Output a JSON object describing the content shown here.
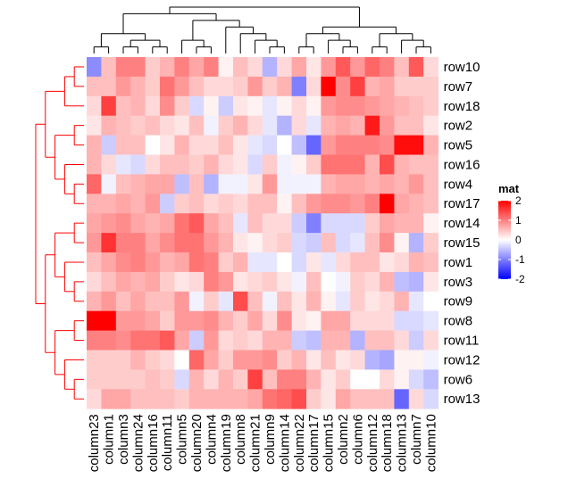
{
  "chart_data": {
    "type": "heatmap",
    "row_labels": [
      "row10",
      "row7",
      "row18",
      "row2",
      "row5",
      "row16",
      "row4",
      "row17",
      "row14",
      "row15",
      "row1",
      "row3",
      "row9",
      "row8",
      "row11",
      "row12",
      "row6",
      "row13"
    ],
    "col_labels": [
      "column23",
      "column1",
      "column3",
      "column24",
      "column16",
      "column11",
      "column5",
      "column20",
      "column4",
      "column19",
      "column8",
      "column21",
      "column9",
      "column14",
      "column22",
      "column17",
      "column15",
      "column2",
      "column6",
      "column12",
      "column18",
      "column13",
      "column7",
      "column10"
    ],
    "values": [
      [
        -0.9,
        0.5,
        1.0,
        1.0,
        0.4,
        0.6,
        1.0,
        0.7,
        1.0,
        0.1,
        0.5,
        0.3,
        -0.6,
        0.3,
        0.7,
        0.2,
        0.8,
        1.3,
        0.8,
        1.2,
        1.0,
        0.5,
        1.3,
        0.3
      ],
      [
        0.5,
        0.5,
        0.8,
        0.6,
        0.4,
        1.1,
        0.8,
        0.5,
        0.3,
        0.3,
        0.4,
        0.8,
        0.4,
        0.6,
        -1.0,
        0.3,
        2.0,
        0.9,
        1.5,
        0.6,
        0.7,
        0.4,
        0.4,
        0.4
      ],
      [
        0.3,
        1.5,
        0.5,
        0.6,
        0.3,
        0.9,
        0.4,
        -0.3,
        0.1,
        -0.4,
        0.2,
        0.1,
        -0.2,
        0.1,
        0.3,
        0.1,
        0.8,
        0.9,
        0.9,
        0.8,
        0.7,
        0.6,
        0.5,
        0.4
      ],
      [
        0.2,
        0.6,
        0.5,
        0.4,
        0.5,
        0.3,
        0.2,
        0.5,
        -0.1,
        0.4,
        0.6,
        0.3,
        -0.2,
        -0.6,
        0.3,
        -0.2,
        0.6,
        0.7,
        0.6,
        1.8,
        0.8,
        0.5,
        0.5,
        0.2
      ],
      [
        0.6,
        -0.4,
        0.5,
        0.5,
        0.0,
        0.2,
        0.6,
        0.3,
        0.3,
        0.5,
        0.2,
        -0.2,
        -0.3,
        0.0,
        -0.5,
        -1.2,
        0.8,
        1.0,
        1.0,
        1.0,
        0.9,
        1.9,
        1.9,
        0.6
      ],
      [
        0.6,
        0.3,
        -0.2,
        -0.3,
        0.3,
        0.5,
        0.5,
        0.4,
        0.6,
        0.3,
        0.2,
        -0.3,
        0.4,
        -0.1,
        0.1,
        0.4,
        1.1,
        1.1,
        1.1,
        0.6,
        1.4,
        0.6,
        0.5,
        0.5
      ],
      [
        1.2,
        -0.1,
        0.5,
        0.6,
        0.7,
        0.7,
        -0.5,
        0.5,
        -0.6,
        -0.1,
        -0.1,
        0.2,
        0.8,
        -0.1,
        -0.1,
        -0.1,
        0.6,
        0.7,
        0.7,
        0.6,
        0.7,
        0.6,
        0.8,
        0.5
      ],
      [
        0.6,
        0.6,
        0.7,
        0.6,
        0.8,
        -0.4,
        0.4,
        0.5,
        0.3,
        0.4,
        0.3,
        0.5,
        0.5,
        0.1,
        0.5,
        0.8,
        0.9,
        0.9,
        0.8,
        1.0,
        2.0,
        0.7,
        0.6,
        0.5
      ],
      [
        0.7,
        0.8,
        0.9,
        0.7,
        0.6,
        0.7,
        1.1,
        1.3,
        0.7,
        0.5,
        -0.2,
        0.5,
        0.3,
        0.3,
        -0.4,
        -1.0,
        -0.3,
        -0.3,
        -0.3,
        0.4,
        0.7,
        0.6,
        0.6,
        0.1
      ],
      [
        0.8,
        1.6,
        1.0,
        1.0,
        0.7,
        0.9,
        1.1,
        1.1,
        0.8,
        0.6,
        0.2,
        0.1,
        0.3,
        0.4,
        -0.3,
        -0.4,
        0.5,
        -0.3,
        -0.2,
        0.5,
        0.9,
        0.1,
        -0.6,
        0.4
      ],
      [
        0.5,
        0.7,
        0.9,
        1.0,
        0.8,
        0.6,
        0.7,
        1.1,
        1.0,
        0.4,
        0.6,
        -0.2,
        -0.2,
        0.0,
        -0.3,
        0.2,
        -0.2,
        0.3,
        0.5,
        0.5,
        0.2,
        0.3,
        0.6,
        0.5
      ],
      [
        0.3,
        0.5,
        0.7,
        0.6,
        0.7,
        0.4,
        0.2,
        0.3,
        1.0,
        0.8,
        0.2,
        0.3,
        0.4,
        0.2,
        -0.1,
        0.5,
        0.0,
        -0.1,
        0.4,
        0.3,
        0.6,
        -0.5,
        -0.6,
        0.2
      ],
      [
        0.6,
        0.8,
        0.5,
        0.7,
        0.5,
        0.5,
        0.8,
        -0.1,
        0.4,
        -0.2,
        1.4,
        0.5,
        -0.1,
        0.5,
        0.2,
        0.6,
        0.1,
        -0.2,
        0.4,
        0.2,
        0.3,
        0.6,
        -0.2,
        0.0
      ],
      [
        2.0,
        2.0,
        0.8,
        0.8,
        0.7,
        0.4,
        0.8,
        0.8,
        0.9,
        0.6,
        0.4,
        0.7,
        0.3,
        0.9,
        0.2,
        0.1,
        0.7,
        0.7,
        0.3,
        0.3,
        0.3,
        -0.3,
        -0.3,
        -0.2
      ],
      [
        1.0,
        1.0,
        0.9,
        1.1,
        1.1,
        1.3,
        0.7,
        -0.4,
        0.8,
        0.3,
        0.4,
        0.3,
        0.6,
        0.6,
        -0.4,
        -0.5,
        0.6,
        0.6,
        -0.6,
        0.5,
        0.5,
        0.3,
        -0.4,
        0.3
      ],
      [
        0.4,
        0.4,
        0.4,
        0.6,
        0.4,
        0.3,
        0.0,
        1.2,
        0.7,
        0.4,
        0.8,
        0.8,
        0.9,
        0.4,
        0.6,
        0.2,
        0.5,
        0.2,
        0.3,
        -0.6,
        -0.7,
        0.1,
        0.1,
        -0.1
      ],
      [
        0.4,
        0.4,
        0.4,
        0.4,
        0.5,
        0.4,
        -0.3,
        0.6,
        0.3,
        0.6,
        0.4,
        1.5,
        0.5,
        1.0,
        1.0,
        0.6,
        0.2,
        0.4,
        0.0,
        0.0,
        0.3,
        0.1,
        -0.3,
        -0.5
      ],
      [
        0.3,
        0.7,
        0.7,
        0.5,
        0.5,
        0.5,
        0.4,
        0.6,
        0.6,
        0.6,
        0.6,
        0.7,
        1.1,
        1.2,
        1.4,
        0.4,
        0.2,
        0.7,
        0.5,
        0.5,
        0.5,
        -1.2,
        0.3,
        -0.3
      ]
    ],
    "legend": {
      "title": "mat",
      "ticks": [
        2,
        1,
        0,
        -1,
        -2
      ],
      "colors": {
        "high": "#ff0000",
        "mid": "#ffffff",
        "low": "#0000ff"
      }
    },
    "row_dendrogram_color": "#ff0000",
    "col_dendrogram_color": "#000000"
  }
}
